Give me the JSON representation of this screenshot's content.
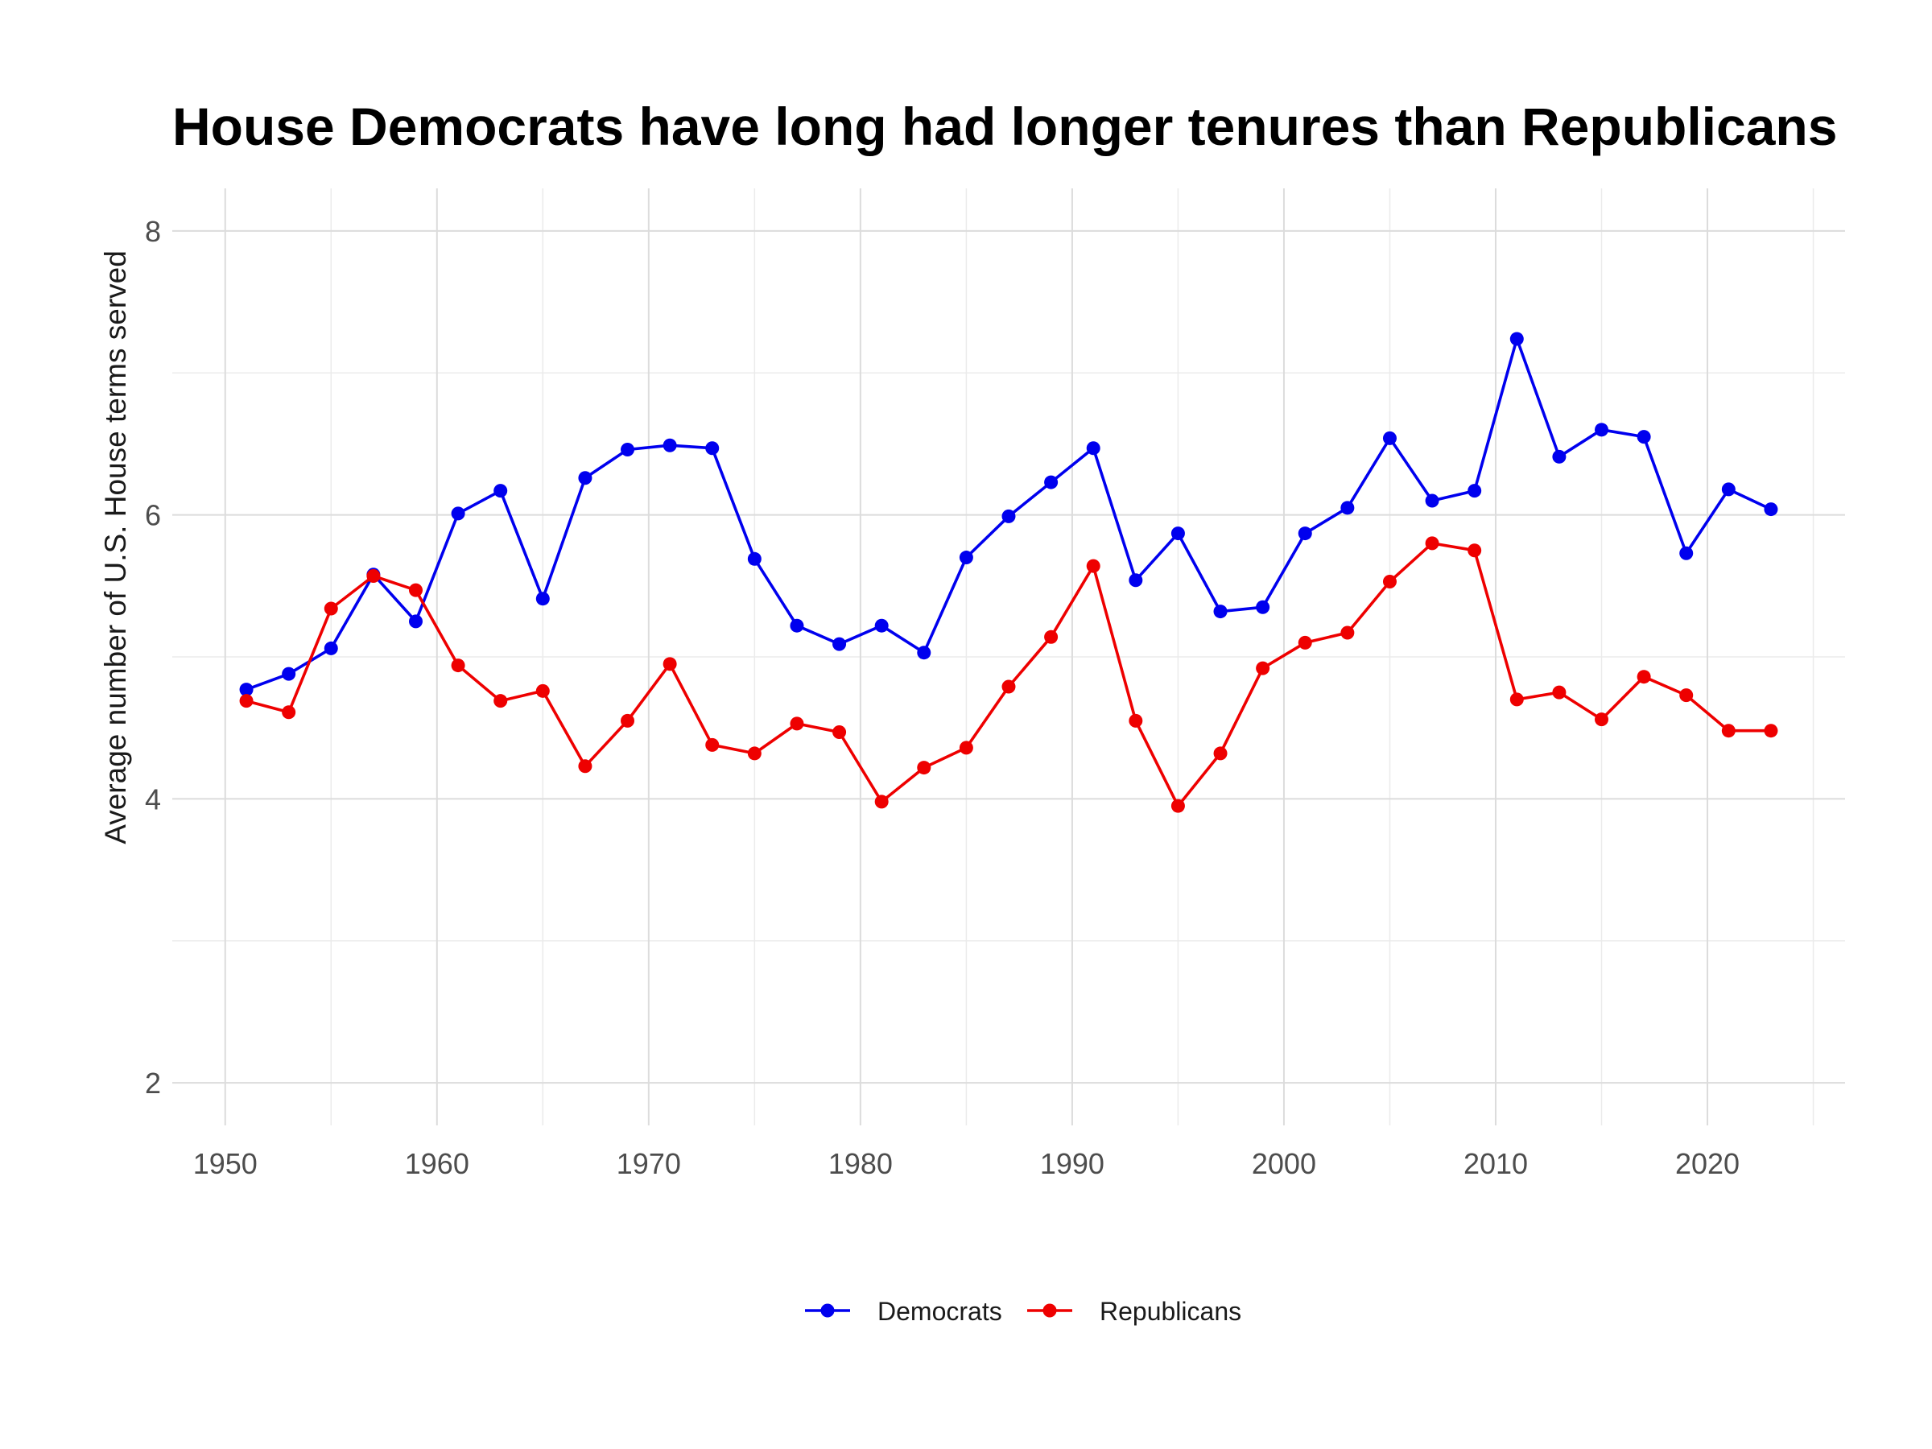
{
  "chart_data": {
    "type": "line",
    "title": "House Democrats have long had longer tenures than Republicans",
    "xlabel": "",
    "ylabel": "Average number of U.S. House terms served",
    "xlim": [
      1947.5,
      2026.5
    ],
    "ylim": [
      1.7,
      8.3
    ],
    "xticks": [
      1950,
      1960,
      1970,
      1980,
      1990,
      2000,
      2010,
      2020
    ],
    "xtick_labels": [
      "1950",
      "1960",
      "1970",
      "1980",
      "1990",
      "2000",
      "2010",
      "2020"
    ],
    "yticks": [
      2,
      4,
      6,
      8
    ],
    "ytick_labels": [
      "2",
      "4",
      "6",
      "8"
    ],
    "grid": true,
    "legend_position": "bottom",
    "x": [
      1951,
      1953,
      1955,
      1957,
      1959,
      1961,
      1963,
      1965,
      1967,
      1969,
      1971,
      1973,
      1975,
      1977,
      1979,
      1981,
      1983,
      1985,
      1987,
      1989,
      1991,
      1993,
      1995,
      1997,
      1999,
      2001,
      2003,
      2005,
      2007,
      2009,
      2011,
      2013,
      2015,
      2017,
      2019,
      2021,
      2023
    ],
    "series": [
      {
        "name": "Democrats",
        "color": "#0000ee",
        "values": [
          4.77,
          4.88,
          5.06,
          5.58,
          5.25,
          6.01,
          6.17,
          5.41,
          6.26,
          6.46,
          6.49,
          6.47,
          5.69,
          5.22,
          5.09,
          5.22,
          5.03,
          5.7,
          5.99,
          6.23,
          6.47,
          5.54,
          5.87,
          5.32,
          5.35,
          5.87,
          6.05,
          6.54,
          6.1,
          6.17,
          7.24,
          6.41,
          6.6,
          6.55,
          5.73,
          6.18,
          6.04
        ]
      },
      {
        "name": "Republicans",
        "color": "#ee0000",
        "values": [
          4.69,
          4.61,
          5.34,
          5.57,
          5.47,
          4.94,
          4.69,
          4.76,
          4.23,
          4.55,
          4.95,
          4.38,
          4.32,
          4.53,
          4.47,
          3.98,
          4.22,
          4.36,
          4.79,
          5.14,
          5.64,
          4.55,
          3.95,
          4.32,
          4.92,
          5.1,
          5.17,
          5.53,
          5.8,
          5.75,
          4.7,
          4.75,
          4.56,
          4.86,
          4.73,
          4.48,
          4.48
        ]
      }
    ]
  }
}
